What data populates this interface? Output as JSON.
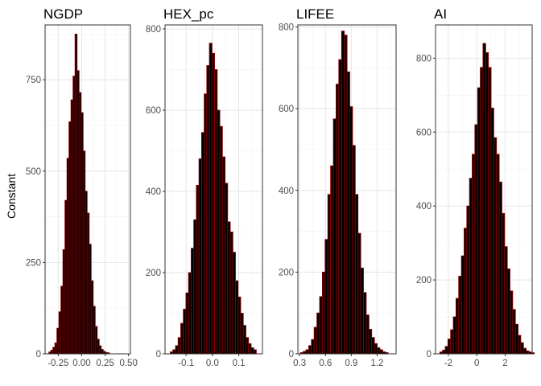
{
  "chart_data": [
    {
      "type": "bar",
      "title": "NGDP",
      "ylabel": "Constant",
      "xlim": [
        -0.39,
        0.52
      ],
      "ylim": [
        0,
        900
      ],
      "xticks": [
        -0.25,
        0.0,
        0.25,
        0.5
      ],
      "xtick_labels": [
        "-0.25",
        "0.00",
        "0.25",
        "0.50"
      ],
      "yticks": [
        0,
        250,
        500,
        750
      ],
      "ytick_labels": [
        "0",
        "250",
        "500",
        "750"
      ],
      "bin_start": -0.35,
      "bin_width": 0.0215,
      "values": [
        5,
        10,
        18,
        30,
        70,
        115,
        185,
        285,
        420,
        535,
        635,
        695,
        760,
        875,
        775,
        715,
        660,
        555,
        445,
        385,
        300,
        200,
        130,
        75,
        40,
        22,
        12,
        7,
        4,
        3
      ],
      "bar_fill": "#000000",
      "bar_outline": "#8b0000",
      "grid": true
    },
    {
      "type": "bar",
      "title": "HEX_pc",
      "xlim": [
        -0.18,
        0.19
      ],
      "ylim": [
        0,
        810
      ],
      "xticks": [
        -0.1,
        0.0,
        0.1
      ],
      "xtick_labels": [
        "-0.1",
        "0.0",
        "0.1"
      ],
      "yticks": [
        0,
        200,
        400,
        600,
        800
      ],
      "ytick_labels": [
        "0",
        "200",
        "400",
        "600",
        "800"
      ],
      "bin_start": -0.16,
      "bin_width": 0.0099,
      "values": [
        5,
        10,
        20,
        40,
        75,
        110,
        150,
        200,
        260,
        330,
        415,
        480,
        545,
        640,
        710,
        765,
        740,
        700,
        600,
        560,
        485,
        420,
        325,
        300,
        250,
        180,
        140,
        100,
        70,
        40,
        25,
        15,
        10
      ],
      "bar_fill": "#000000",
      "bar_outline": "#8b0000",
      "grid": true
    },
    {
      "type": "bar",
      "title": "LIFEE",
      "xlim": [
        0.28,
        1.42
      ],
      "ylim": [
        0,
        805
      ],
      "xticks": [
        0.3,
        0.6,
        0.9,
        1.2
      ],
      "xtick_labels": [
        "0.3",
        "0.6",
        "0.9",
        "1.2"
      ],
      "yticks": [
        0,
        200,
        400,
        600,
        800
      ],
      "ytick_labels": [
        "0",
        "200",
        "400",
        "600",
        "800"
      ],
      "bin_start": 0.31,
      "bin_width": 0.0318,
      "values": [
        3,
        6,
        10,
        20,
        35,
        65,
        100,
        140,
        200,
        280,
        390,
        460,
        575,
        660,
        720,
        790,
        780,
        690,
        605,
        510,
        390,
        295,
        210,
        150,
        95,
        60,
        40,
        25,
        15,
        10,
        5,
        3
      ],
      "bar_fill": "#000000",
      "bar_outline": "#8b0000",
      "grid": true
    },
    {
      "type": "bar",
      "title": "AI",
      "xlim": [
        -2.9,
        3.9
      ],
      "ylim": [
        0,
        890
      ],
      "xticks": [
        -2,
        0,
        2
      ],
      "xtick_labels": [
        "-2",
        "0",
        "2"
      ],
      "yticks": [
        0,
        200,
        400,
        600,
        800
      ],
      "ytick_labels": [
        "0",
        "200",
        "400",
        "600",
        "800"
      ],
      "bin_start": -2.6,
      "bin_width": 0.19,
      "values": [
        5,
        10,
        20,
        40,
        65,
        100,
        150,
        210,
        265,
        340,
        400,
        475,
        540,
        620,
        720,
        775,
        840,
        815,
        775,
        665,
        585,
        540,
        465,
        380,
        290,
        230,
        170,
        120,
        80,
        50,
        30,
        15,
        8,
        5,
        3
      ],
      "bar_fill": "#000000",
      "bar_outline": "#8b0000",
      "grid": true
    }
  ]
}
